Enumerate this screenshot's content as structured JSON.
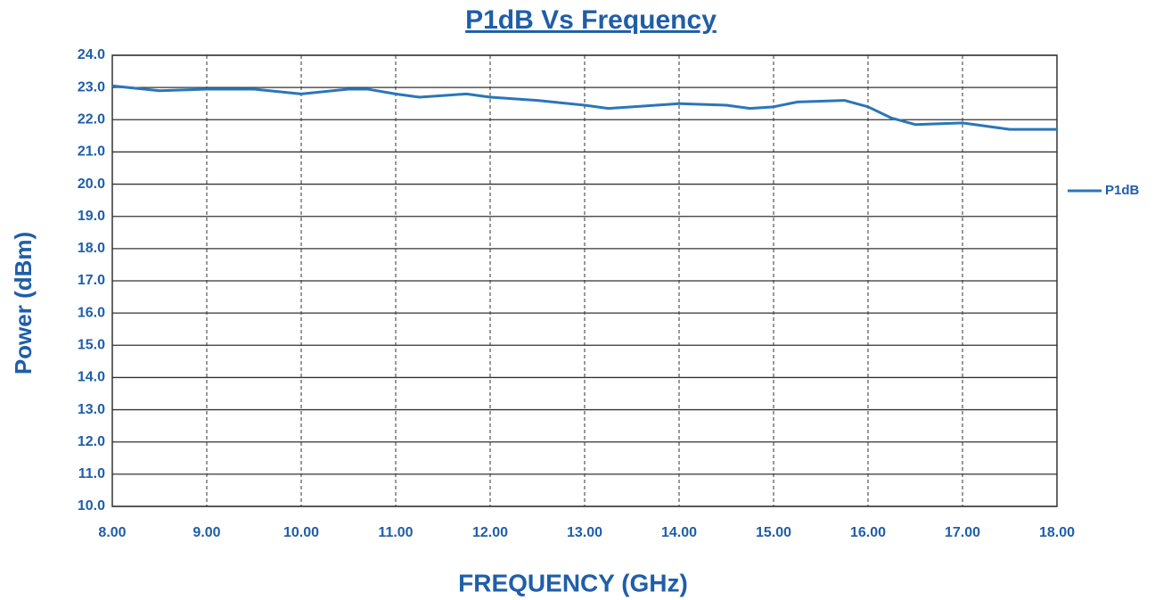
{
  "chart_data": {
    "type": "line",
    "title": "P1dB Vs Frequency",
    "x_label": "FREQUENCY (GHz)",
    "y_label": "Power (dBm)",
    "x": [
      8.0,
      8.5,
      9.0,
      9.5,
      10.0,
      10.5,
      10.7,
      11.0,
      11.25,
      11.75,
      12.0,
      12.5,
      13.0,
      13.25,
      13.5,
      14.0,
      14.5,
      14.75,
      15.0,
      15.25,
      15.75,
      16.0,
      16.25,
      16.5,
      17.0,
      17.5,
      18.0
    ],
    "series": [
      {
        "name": "P1dB",
        "color": "#2a76b9",
        "values": [
          23.05,
          22.9,
          22.95,
          22.95,
          22.8,
          22.95,
          22.95,
          22.8,
          22.7,
          22.8,
          22.7,
          22.6,
          22.45,
          22.35,
          22.4,
          22.5,
          22.45,
          22.35,
          22.4,
          22.55,
          22.6,
          22.4,
          22.05,
          21.85,
          21.9,
          21.7,
          21.7
        ]
      }
    ],
    "xlim": [
      8,
      18
    ],
    "xticks": [
      {
        "value": 8,
        "label": "8.00"
      },
      {
        "value": 9,
        "label": "9.00"
      },
      {
        "value": 10,
        "label": "10.00"
      },
      {
        "value": 11,
        "label": "11.00"
      },
      {
        "value": 12,
        "label": "12.00"
      },
      {
        "value": 13,
        "label": "13.00"
      },
      {
        "value": 14,
        "label": "14.00"
      },
      {
        "value": 15,
        "label": "15.00"
      },
      {
        "value": 16,
        "label": "16.00"
      },
      {
        "value": 17,
        "label": "17.00"
      },
      {
        "value": 18,
        "label": "18.00"
      }
    ],
    "ylim": [
      10,
      24
    ],
    "yticks": [
      {
        "value": 10,
        "label": "10.0"
      },
      {
        "value": 11,
        "label": "11.0"
      },
      {
        "value": 12,
        "label": "12.0"
      },
      {
        "value": 13,
        "label": "13.0"
      },
      {
        "value": 14,
        "label": "14.0"
      },
      {
        "value": 15,
        "label": "15.0"
      },
      {
        "value": 16,
        "label": "16.0"
      },
      {
        "value": 17,
        "label": "17.0"
      },
      {
        "value": 18,
        "label": "18.0"
      },
      {
        "value": 19,
        "label": "19.0"
      },
      {
        "value": 20,
        "label": "20.0"
      },
      {
        "value": 21,
        "label": "21.0"
      },
      {
        "value": 22,
        "label": "22.0"
      },
      {
        "value": 23,
        "label": "23.0"
      },
      {
        "value": 24,
        "label": "24.0"
      }
    ],
    "grid": true,
    "legend": "right"
  }
}
